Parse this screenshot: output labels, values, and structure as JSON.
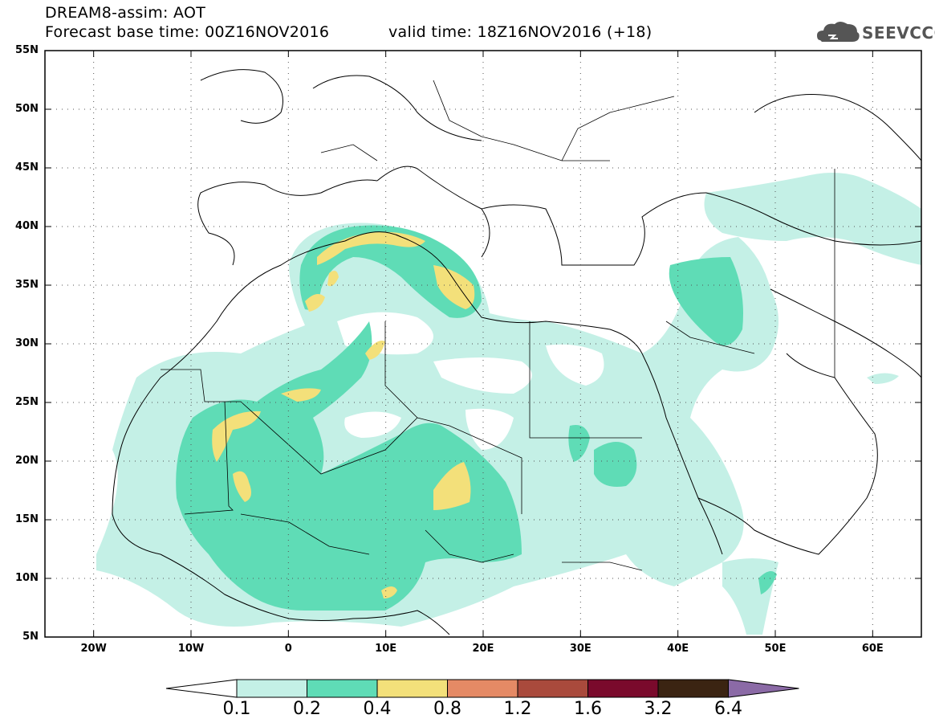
{
  "header": {
    "line1": "DREAM8-assim: AOT",
    "line2": "Forecast base time: 00Z16NOV2016",
    "line3": "valid time: 18Z16NOV2016 (+18)",
    "logo_text": "SEEVCCC",
    "logo_icon": "cloud-logo-icon"
  },
  "map": {
    "lat_labels": [
      "55N",
      "50N",
      "45N",
      "40N",
      "35N",
      "30N",
      "25N",
      "20N",
      "15N",
      "10N",
      "5N"
    ],
    "lon_labels": [
      "20W",
      "10W",
      "0",
      "10E",
      "20E",
      "30E",
      "40E",
      "50E",
      "60E"
    ],
    "extent": {
      "lon": [
        -25,
        65
      ],
      "lat": [
        5,
        55
      ]
    },
    "grid": "dotted"
  },
  "colorbar": {
    "labels": [
      "0.1",
      "0.2",
      "0.4",
      "0.8",
      "1.2",
      "1.6",
      "3.2",
      "6.4"
    ],
    "colors": [
      "#ffffff",
      "#c4f0e6",
      "#5fdcb6",
      "#f3e07a",
      "#e58a65",
      "#a94a3c",
      "#7a0a2c",
      "#3b2412",
      "#8b6aa6"
    ]
  }
}
